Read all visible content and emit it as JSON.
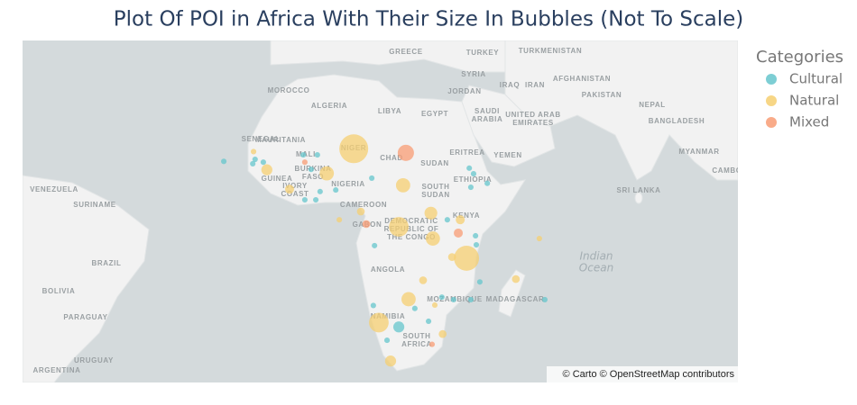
{
  "chart_data": {
    "type": "scatter_map",
    "title": "Plot Of POI in Africa With Their Size In Bubbles (Not To Scale)",
    "legend_title": "Categories",
    "legend_position": "top-right",
    "attribution": "© Carto © OpenStreetMap contributors",
    "series": [
      {
        "name": "Cultural",
        "color": "#66c5cc",
        "lat": [
          14.3,
          13.7,
          14.8,
          14.1,
          15.9,
          15.9,
          12.3,
          7.1,
          6.7,
          4.6,
          4.6,
          10.1,
          12.6,
          11.2,
          8.8,
          7.8,
          -0.5,
          -4.6,
          -6.9,
          -7.1,
          -26.9,
          -19.9,
          -20.5,
          -20.5,
          -16.2,
          -22.6,
          -21.9,
          -29.9,
          -25.6,
          -20.5
        ],
        "lon": [
          -23.9,
          -16.5,
          -15.9,
          -13.8,
          -3.6,
          0.0,
          -1.6,
          4.7,
          0.7,
          -3.2,
          -0.4,
          13.9,
          38.8,
          39.9,
          43.4,
          39.2,
          33.2,
          40.4,
          40.6,
          14.6,
          20.8,
          31.8,
          34.8,
          39.2,
          41.5,
          24.9,
          14.3,
          17.8,
          28.4,
          58.1
        ],
        "size": [
          1.5,
          1.5,
          1.5,
          1.5,
          1.5,
          1.5,
          1.5,
          1.5,
          1.5,
          1.5,
          1.5,
          1.5,
          1.5,
          1.5,
          1.5,
          1.5,
          1.5,
          1.5,
          1.5,
          1.5,
          6,
          1.5,
          1.5,
          1.5,
          1.5,
          1.5,
          1.5,
          1.5,
          1.5,
          1.5
        ]
      },
      {
        "name": "Natural",
        "color": "#f6cf71",
        "lat": [
          17.4,
          11.3,
          12.2,
          8.3,
          -2.3,
          1.2,
          -5.3,
          -10.3,
          -20.4,
          -25.9,
          -34.4,
          -15.5,
          -5.3,
          7.3,
          1.6,
          -0.5,
          -10.0,
          -15.8,
          -21.8,
          -28.5,
          -0.5,
          16.7
        ],
        "lon": [
          9.3,
          2.4,
          -12.9,
          21.9,
          20.8,
          29.0,
          29.5,
          38.1,
          23.3,
          15.7,
          18.7,
          50.7,
          56.7,
          -7.1,
          11.1,
          36.5,
          34.4,
          27.0,
          30.0,
          32.0,
          5.6,
          -16.3
        ],
        "size": [
          41,
          10,
          6,
          10,
          19,
          8,
          10,
          31,
          10,
          19,
          6,
          3,
          1.5,
          4,
          3,
          4,
          3,
          3,
          1.5,
          3,
          1.5,
          1.5
        ]
      },
      {
        "name": "Mixed",
        "color": "#f89c74",
        "lat": [
          16.4,
          -1.6,
          -3.9,
          14.1,
          -30.8
        ],
        "lon": [
          22.6,
          12.5,
          36.0,
          -3.2,
          29.3
        ],
        "size": [
          13,
          3,
          4,
          1.5,
          1.5
        ]
      }
    ],
    "map_labels": [
      [
        "GREECE"
      ],
      [
        "TURKEY"
      ],
      [
        "TURKMENISTAN"
      ],
      [
        "SYRIA"
      ],
      [
        "IRAQ"
      ],
      [
        "IRAN"
      ],
      [
        "JORDAN"
      ],
      [
        "AFGHANISTAN"
      ],
      [
        "PAKISTAN"
      ],
      [
        "SAUDI",
        "ARABIA"
      ],
      [
        "UNITED ARAB",
        "EMIRATES"
      ],
      [
        "NEPAL"
      ],
      [
        "BANGLADESH"
      ],
      [
        "MYANMAR"
      ],
      [
        "CAMBO"
      ],
      [
        "SRI LANKA"
      ],
      [
        "YEMEN"
      ],
      [
        "ERITREA"
      ],
      [
        "MOROCCO"
      ],
      [
        "ALGERIA"
      ],
      [
        "LIBYA"
      ],
      [
        "EGYPT"
      ],
      [
        "MAURITANIA"
      ],
      [
        "MALI"
      ],
      [
        "NIGER"
      ],
      [
        "CHAD"
      ],
      [
        "SUDAN"
      ],
      [
        "SENEGAL"
      ],
      [
        "GUINEA"
      ],
      [
        "BURKINA",
        "FASO"
      ],
      [
        "IVORY",
        "COAST"
      ],
      [
        "NIGERIA"
      ],
      [
        "ETHIOPIA"
      ],
      [
        "SOUTH",
        "SUDAN"
      ],
      [
        "CAMEROON"
      ],
      [
        "GABON"
      ],
      [
        "DEMOCRATIC",
        "REPUBLIC OF",
        "THE CONGO"
      ],
      [
        "KENYA"
      ],
      [
        "ANGOLA"
      ],
      [
        "MOZAMBIQUE"
      ],
      [
        "NAMIBIA"
      ],
      [
        "SOUTH",
        "AFRICA"
      ],
      [
        "MADAGASCAR"
      ],
      [
        "VENEZUELA"
      ],
      [
        "SURINAME"
      ],
      [
        "BRAZIL"
      ],
      [
        "BOLIVIA"
      ],
      [
        "PARAGUAY"
      ],
      [
        "URUGUAY"
      ],
      [
        "ARGENTINA"
      ]
    ],
    "ocean_label": [
      "Indian",
      "Ocean"
    ]
  }
}
